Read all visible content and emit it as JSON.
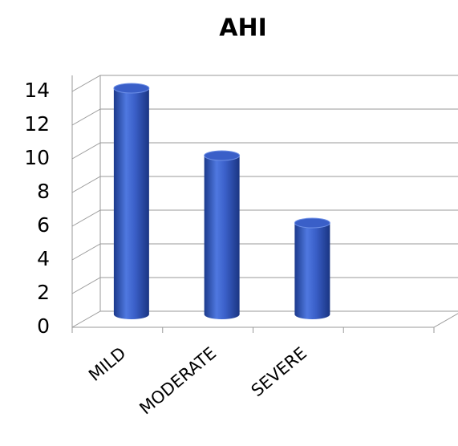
{
  "chart_data": {
    "type": "bar",
    "title": "AHI",
    "categories": [
      "MILD",
      "MODERATE",
      "SEVERE",
      null
    ],
    "values": [
      14,
      10,
      6,
      null
    ],
    "color": "#3a5fc8",
    "ylim": [
      0,
      14
    ],
    "yticks": [
      0,
      2,
      4,
      6,
      8,
      10,
      12,
      14
    ],
    "grid": true
  }
}
